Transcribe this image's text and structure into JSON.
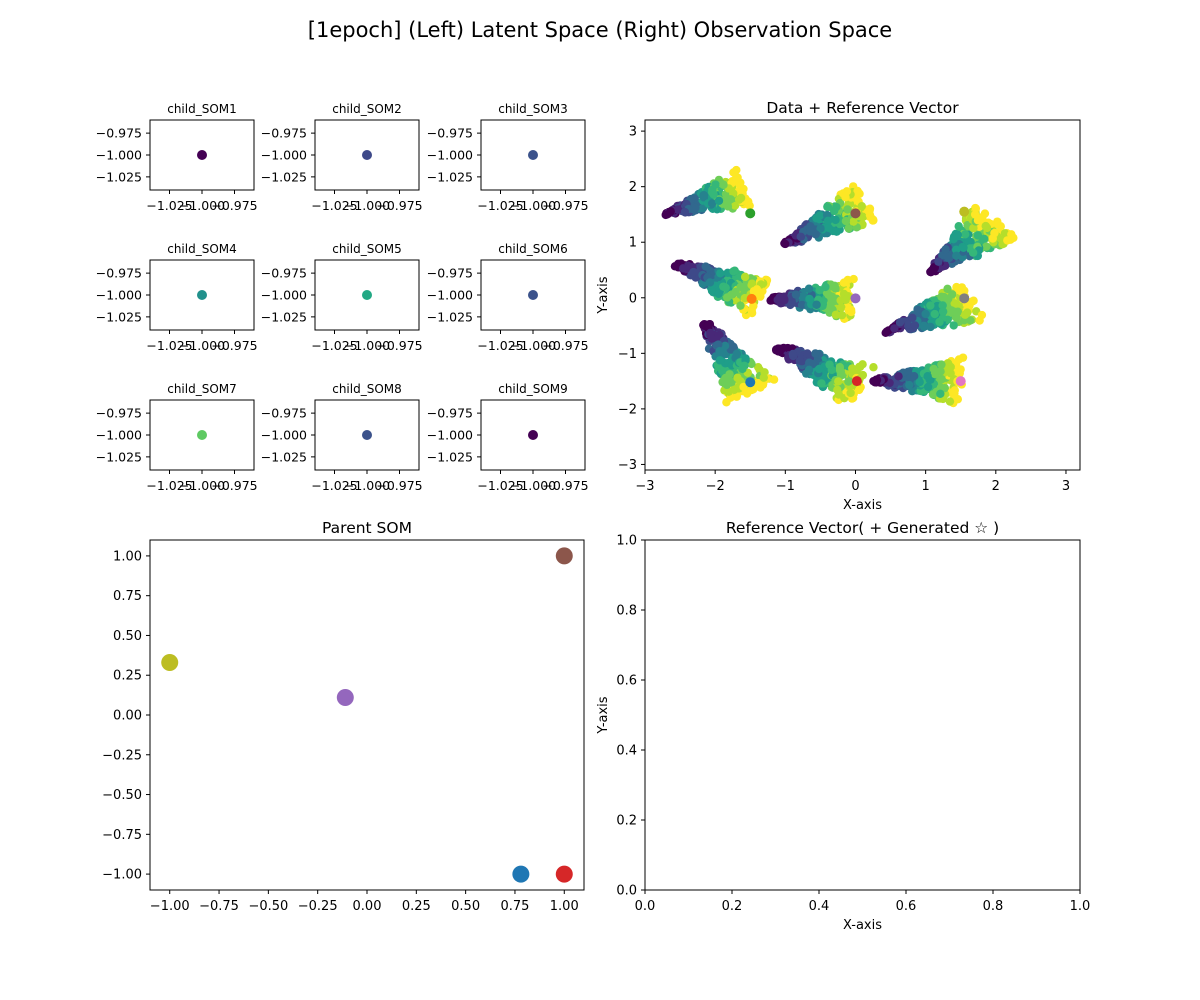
{
  "figure": {
    "suptitle": "[1epoch]   (Left) Latent Space   (Right) Observation Space"
  },
  "colors": {
    "viridis": [
      "#440154",
      "#482878",
      "#3e4989",
      "#31688e",
      "#26828e",
      "#1f9e89",
      "#35b779",
      "#6ece58",
      "#b5de2b",
      "#fde725"
    ],
    "tab10": [
      "#1f77b4",
      "#ff7f0e",
      "#2ca02c",
      "#d62728",
      "#9467bd",
      "#8c564b",
      "#e377c2",
      "#7f7f7f",
      "#bcbd22",
      "#17becf"
    ]
  },
  "chart_data": [
    {
      "id": "child1",
      "type": "scatter",
      "title": "child_SOM1",
      "xlim": [
        -1.04,
        -0.96
      ],
      "ylim": [
        -1.04,
        -0.96
      ],
      "xticks": [
        -1.025,
        -1.0,
        -0.975
      ],
      "xtick_labels": [
        "−1.025",
        "−1.000",
        "−0.975"
      ],
      "yticks": [
        -0.975,
        -1.0,
        -1.025
      ],
      "ytick_labels": [
        "−0.975",
        "−1.000",
        "−1.025"
      ],
      "points": [
        {
          "x": -1.0,
          "y": -1.0,
          "color": "#440154"
        }
      ]
    },
    {
      "id": "child2",
      "type": "scatter",
      "title": "child_SOM2",
      "xlim": [
        -1.04,
        -0.96
      ],
      "ylim": [
        -1.04,
        -0.96
      ],
      "xticks": [
        -1.025,
        -1.0,
        -0.975
      ],
      "xtick_labels": [
        "−1.025",
        "−1.000",
        "−0.975"
      ],
      "yticks": [
        -0.975,
        -1.0,
        -1.025
      ],
      "ytick_labels": [
        "−0.975",
        "−1.000",
        "−1.025"
      ],
      "points": [
        {
          "x": -1.0,
          "y": -1.0,
          "color": "#3e4989"
        }
      ]
    },
    {
      "id": "child3",
      "type": "scatter",
      "title": "child_SOM3",
      "xlim": [
        -1.04,
        -0.96
      ],
      "ylim": [
        -1.04,
        -0.96
      ],
      "xticks": [
        -1.025,
        -1.0,
        -0.975
      ],
      "xtick_labels": [
        "−1.025",
        "−1.000",
        "−0.975"
      ],
      "yticks": [
        -0.975,
        -1.0,
        -1.025
      ],
      "ytick_labels": [
        "−0.975",
        "−1.000",
        "−1.025"
      ],
      "points": [
        {
          "x": -1.0,
          "y": -1.0,
          "color": "#3b528b"
        }
      ]
    },
    {
      "id": "child4",
      "type": "scatter",
      "title": "child_SOM4",
      "xlim": [
        -1.04,
        -0.96
      ],
      "ylim": [
        -1.04,
        -0.96
      ],
      "xticks": [
        -1.025,
        -1.0,
        -0.975
      ],
      "xtick_labels": [
        "−1.025",
        "−1.000",
        "−0.975"
      ],
      "yticks": [
        -0.975,
        -1.0,
        -1.025
      ],
      "ytick_labels": [
        "−0.975",
        "−1.000",
        "−1.025"
      ],
      "points": [
        {
          "x": -1.0,
          "y": -1.0,
          "color": "#21918c"
        }
      ]
    },
    {
      "id": "child5",
      "type": "scatter",
      "title": "child_SOM5",
      "xlim": [
        -1.04,
        -0.96
      ],
      "ylim": [
        -1.04,
        -0.96
      ],
      "xticks": [
        -1.025,
        -1.0,
        -0.975
      ],
      "xtick_labels": [
        "−1.025",
        "−1.000",
        "−0.975"
      ],
      "yticks": [
        -0.975,
        -1.0,
        -1.025
      ],
      "ytick_labels": [
        "−0.975",
        "−1.000",
        "−1.025"
      ],
      "points": [
        {
          "x": -1.0,
          "y": -1.0,
          "color": "#22a884"
        }
      ]
    },
    {
      "id": "child6",
      "type": "scatter",
      "title": "child_SOM6",
      "xlim": [
        -1.04,
        -0.96
      ],
      "ylim": [
        -1.04,
        -0.96
      ],
      "xticks": [
        -1.025,
        -1.0,
        -0.975
      ],
      "xtick_labels": [
        "−1.025",
        "−1.000",
        "−0.975"
      ],
      "yticks": [
        -0.975,
        -1.0,
        -1.025
      ],
      "ytick_labels": [
        "−0.975",
        "−1.000",
        "−1.025"
      ],
      "points": [
        {
          "x": -1.0,
          "y": -1.0,
          "color": "#3b528b"
        }
      ]
    },
    {
      "id": "child7",
      "type": "scatter",
      "title": "child_SOM7",
      "xlim": [
        -1.04,
        -0.96
      ],
      "ylim": [
        -1.04,
        -0.96
      ],
      "xticks": [
        -1.025,
        -1.0,
        -0.975
      ],
      "xtick_labels": [
        "−1.025",
        "−1.000",
        "−0.975"
      ],
      "yticks": [
        -0.975,
        -1.0,
        -1.025
      ],
      "ytick_labels": [
        "−0.975",
        "−1.000",
        "−1.025"
      ],
      "points": [
        {
          "x": -1.0,
          "y": -1.0,
          "color": "#5ec962"
        }
      ]
    },
    {
      "id": "child8",
      "type": "scatter",
      "title": "child_SOM8",
      "xlim": [
        -1.04,
        -0.96
      ],
      "ylim": [
        -1.04,
        -0.96
      ],
      "xticks": [
        -1.025,
        -1.0,
        -0.975
      ],
      "xtick_labels": [
        "−1.025",
        "−1.000",
        "−0.975"
      ],
      "yticks": [
        -0.975,
        -1.0,
        -1.025
      ],
      "ytick_labels": [
        "−0.975",
        "−1.000",
        "−1.025"
      ],
      "points": [
        {
          "x": -1.0,
          "y": -1.0,
          "color": "#3b528b"
        }
      ]
    },
    {
      "id": "child9",
      "type": "scatter",
      "title": "child_SOM9",
      "xlim": [
        -1.04,
        -0.96
      ],
      "ylim": [
        -1.04,
        -0.96
      ],
      "xticks": [
        -1.025,
        -1.0,
        -0.975
      ],
      "xtick_labels": [
        "−1.025",
        "−1.000",
        "−0.975"
      ],
      "yticks": [
        -0.975,
        -1.0,
        -1.025
      ],
      "ytick_labels": [
        "−0.975",
        "−1.000",
        "−1.025"
      ],
      "points": [
        {
          "x": -1.0,
          "y": -1.0,
          "color": "#440154"
        }
      ]
    },
    {
      "id": "data",
      "type": "scatter",
      "title": "Data + Reference Vector",
      "xlabel": "X-axis",
      "ylabel": "Y-axis",
      "xlim": [
        -3.0,
        3.2
      ],
      "ylim": [
        -3.1,
        3.2
      ],
      "xticks": [
        -3,
        -2,
        -1,
        0,
        1,
        2,
        3
      ],
      "xtick_labels": [
        "−3",
        "−2",
        "−1",
        "0",
        "1",
        "2",
        "3"
      ],
      "yticks": [
        -3,
        -2,
        -1,
        0,
        1,
        2,
        3
      ],
      "ytick_labels": [
        "−3",
        "−2",
        "−1",
        "0",
        "1",
        "2",
        "3"
      ],
      "point_colormap": "viridis",
      "clusters": [
        {
          "center": [
            -1.5,
            1.5
          ],
          "tip": [
            -2.7,
            1.52
          ],
          "spread_dir": [
            1.1,
            0.45
          ],
          "half_width": 0.35
        },
        {
          "center": [
            0.0,
            1.5
          ],
          "tip": [
            -1.05,
            0.95
          ],
          "spread_dir": [
            1.2,
            0.75
          ],
          "half_width": 0.4
        },
        {
          "center": [
            1.55,
            1.5
          ],
          "tip": [
            1.05,
            0.45
          ],
          "spread_dir": [
            0.95,
            0.9
          ],
          "half_width": 0.45
        },
        {
          "center": [
            -1.5,
            0.0
          ],
          "tip": [
            -2.55,
            0.6
          ],
          "spread_dir": [
            1.2,
            -0.6
          ],
          "half_width": 0.4
        },
        {
          "center": [
            0.0,
            0.0
          ],
          "tip": [
            -1.2,
            -0.02
          ],
          "spread_dir": [
            1.15,
            0.0
          ],
          "half_width": 0.38
        },
        {
          "center": [
            1.55,
            0.0
          ],
          "tip": [
            0.45,
            -0.6
          ],
          "spread_dir": [
            1.2,
            0.55
          ],
          "half_width": 0.42
        },
        {
          "center": [
            -1.5,
            -1.5
          ],
          "tip": [
            -2.15,
            -0.45
          ],
          "spread_dir": [
            0.65,
            -1.25
          ],
          "half_width": 0.38
        },
        {
          "center": [
            0.0,
            -1.5
          ],
          "tip": [
            -1.1,
            -0.9
          ],
          "spread_dir": [
            1.2,
            -0.7
          ],
          "half_width": 0.38
        },
        {
          "center": [
            1.5,
            -1.5
          ],
          "tip": [
            0.25,
            -1.5
          ],
          "spread_dir": [
            1.25,
            0.0
          ],
          "half_width": 0.4
        }
      ],
      "reference_vectors": [
        {
          "x": -1.5,
          "y": 1.52,
          "color": "#2ca02c"
        },
        {
          "x": 0.0,
          "y": 1.52,
          "color": "#8c564b"
        },
        {
          "x": 1.55,
          "y": 1.55,
          "color": "#bcbd22"
        },
        {
          "x": -1.48,
          "y": -0.02,
          "color": "#ff7f0e"
        },
        {
          "x": 0.0,
          "y": -0.01,
          "color": "#9467bd"
        },
        {
          "x": 1.55,
          "y": -0.01,
          "color": "#7f7f7f"
        },
        {
          "x": -1.5,
          "y": -1.52,
          "color": "#1f77b4"
        },
        {
          "x": 0.02,
          "y": -1.5,
          "color": "#d62728"
        },
        {
          "x": 1.5,
          "y": -1.5,
          "color": "#e377c2"
        }
      ]
    },
    {
      "id": "parent",
      "type": "scatter",
      "title": "Parent SOM",
      "xlim": [
        -1.1,
        1.1
      ],
      "ylim": [
        -1.1,
        1.1
      ],
      "xticks": [
        -1.0,
        -0.75,
        -0.5,
        -0.25,
        0.0,
        0.25,
        0.5,
        0.75,
        1.0
      ],
      "xtick_labels": [
        "−1.00",
        "−0.75",
        "−0.50",
        "−0.25",
        "0.00",
        "0.25",
        "0.50",
        "0.75",
        "1.00"
      ],
      "yticks": [
        1.0,
        0.75,
        0.5,
        0.25,
        0.0,
        -0.25,
        -0.5,
        -0.75,
        -1.0
      ],
      "ytick_labels": [
        "1.00",
        "0.75",
        "0.50",
        "0.25",
        "0.00",
        "−0.25",
        "−0.50",
        "−0.75",
        "−1.00"
      ],
      "points": [
        {
          "x": 1.0,
          "y": 1.0,
          "color": "#8c564b"
        },
        {
          "x": -1.0,
          "y": 0.33,
          "color": "#bcbd22"
        },
        {
          "x": -0.11,
          "y": 0.11,
          "color": "#9467bd"
        },
        {
          "x": 0.78,
          "y": -1.0,
          "color": "#1f77b4"
        },
        {
          "x": 1.0,
          "y": -1.0,
          "color": "#d62728"
        }
      ]
    },
    {
      "id": "refvec",
      "type": "scatter",
      "title": "Reference Vector( + Generated ☆ )",
      "xlabel": "X-axis",
      "ylabel": "Y-axis",
      "xlim": [
        0.0,
        1.0
      ],
      "ylim": [
        0.0,
        1.0
      ],
      "xticks": [
        0.0,
        0.2,
        0.4,
        0.6,
        0.8,
        1.0
      ],
      "xtick_labels": [
        "0.0",
        "0.2",
        "0.4",
        "0.6",
        "0.8",
        "1.0"
      ],
      "yticks": [
        1.0,
        0.8,
        0.6,
        0.4,
        0.2,
        0.0
      ],
      "ytick_labels": [
        "1.0",
        "0.8",
        "0.6",
        "0.4",
        "0.2",
        "0.0"
      ],
      "points": []
    }
  ]
}
